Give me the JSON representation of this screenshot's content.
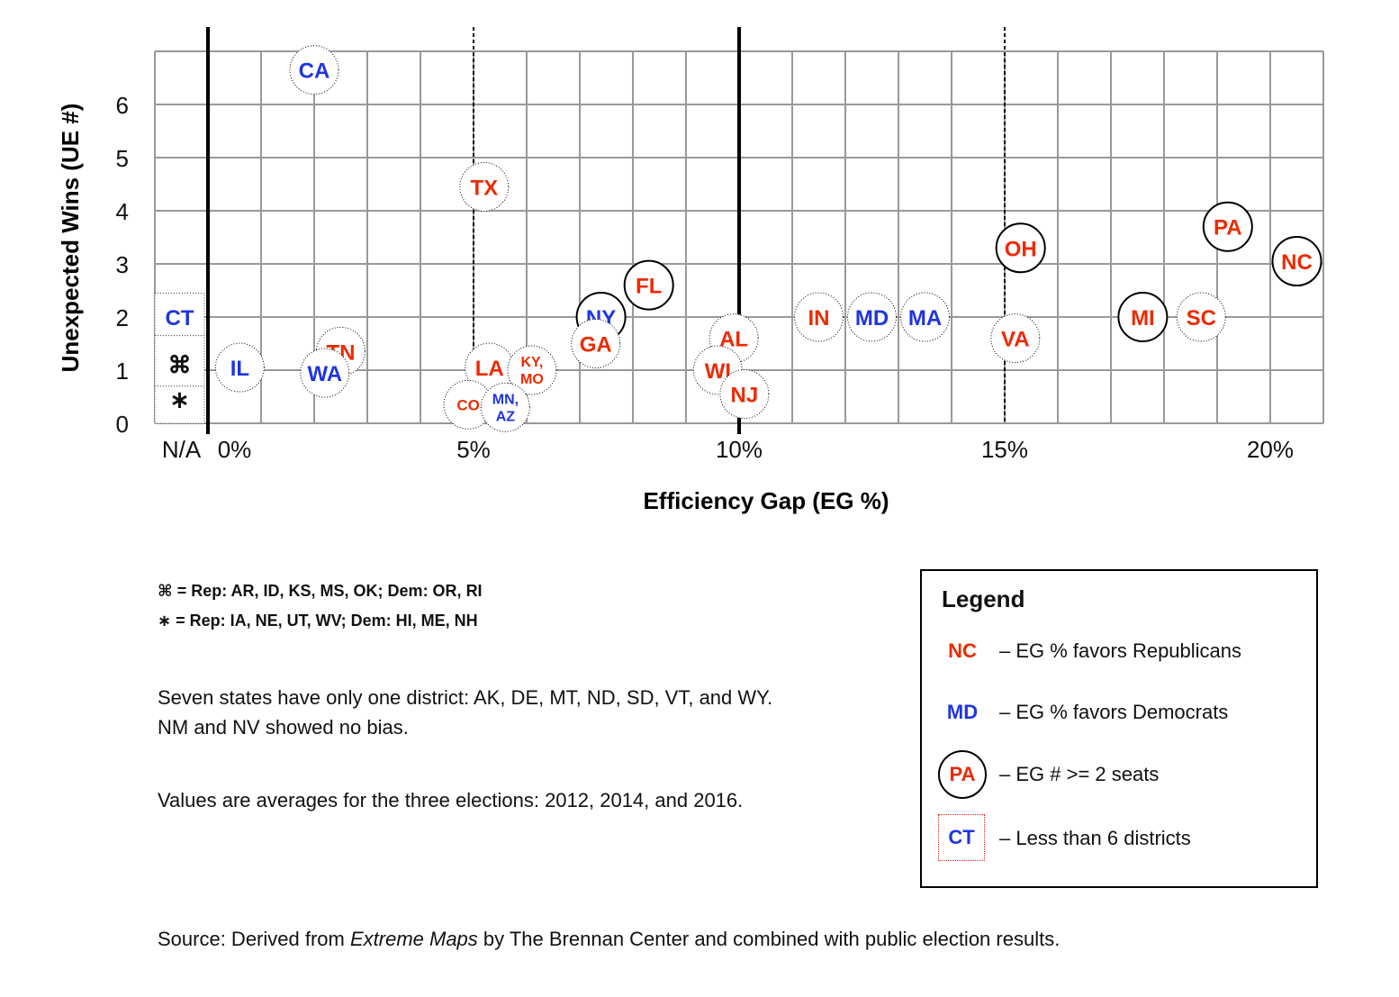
{
  "colors": {
    "rep": "#ee2a00",
    "dem": "#1f35e0",
    "grid": "#999999",
    "axis": "#000000"
  },
  "chart_data": {
    "type": "scatter",
    "xlabel": "Efficiency Gap (EG %)",
    "ylabel": "Unexpected Wins (UE #)",
    "xlim": [
      -1,
      21
    ],
    "ylim": [
      0,
      7
    ],
    "x_tick_labels": [
      {
        "x": -0.5,
        "label": "N/A"
      },
      {
        "x": 0.5,
        "label": "0%"
      },
      {
        "x": 5,
        "label": "5%"
      },
      {
        "x": 10,
        "label": "10%"
      },
      {
        "x": 15,
        "label": "15%"
      },
      {
        "x": 20,
        "label": "20%"
      }
    ],
    "y_ticks": [
      0,
      1,
      2,
      3,
      4,
      5,
      6
    ],
    "solid_reference_lines_x": [
      0,
      10
    ],
    "dotted_reference_lines_x": [
      5,
      15
    ],
    "na_column": [
      {
        "label": "CT",
        "y": 2.0,
        "party": "dem"
      },
      {
        "label": "⌘",
        "y": 1.1,
        "party": "none"
      },
      {
        "label": "∗",
        "y": 0.45,
        "party": "none"
      }
    ],
    "points": [
      {
        "label": "CA",
        "x": 2.0,
        "y": 6.65,
        "party": "dem",
        "seats2": false
      },
      {
        "label": "TX",
        "x": 5.2,
        "y": 4.45,
        "party": "rep",
        "seats2": false
      },
      {
        "label": "IL",
        "x": 0.6,
        "y": 1.05,
        "party": "dem",
        "seats2": false
      },
      {
        "label": "TN",
        "x": 2.5,
        "y": 1.35,
        "party": "rep",
        "seats2": false
      },
      {
        "label": "WA",
        "x": 2.2,
        "y": 0.95,
        "party": "dem",
        "seats2": false
      },
      {
        "label": "LA",
        "x": 5.3,
        "y": 1.05,
        "party": "rep",
        "seats2": false
      },
      {
        "label": "KY,|MO",
        "x": 6.1,
        "y": 1.0,
        "party": "rep",
        "seats2": false,
        "small": true
      },
      {
        "label": "CO",
        "x": 4.9,
        "y": 0.35,
        "party": "rep",
        "seats2": false,
        "small": true
      },
      {
        "label": "MN,|AZ",
        "x": 5.6,
        "y": 0.3,
        "party": "dem",
        "seats2": false,
        "small": true
      },
      {
        "label": "NY",
        "x": 7.4,
        "y": 2.0,
        "party": "dem",
        "seats2": true
      },
      {
        "label": "GA",
        "x": 7.3,
        "y": 1.5,
        "party": "rep",
        "seats2": false
      },
      {
        "label": "FL",
        "x": 8.3,
        "y": 2.6,
        "party": "rep",
        "seats2": true
      },
      {
        "label": "AL",
        "x": 9.9,
        "y": 1.6,
        "party": "rep",
        "seats2": false
      },
      {
        "label": "WI",
        "x": 9.6,
        "y": 1.0,
        "party": "rep",
        "seats2": false
      },
      {
        "label": "NJ",
        "x": 10.1,
        "y": 0.55,
        "party": "rep",
        "seats2": false
      },
      {
        "label": "IN",
        "x": 11.5,
        "y": 2.0,
        "party": "rep",
        "seats2": false
      },
      {
        "label": "MD",
        "x": 12.5,
        "y": 2.0,
        "party": "dem",
        "seats2": false
      },
      {
        "label": "MA",
        "x": 13.5,
        "y": 2.0,
        "party": "dem",
        "seats2": false
      },
      {
        "label": "OH",
        "x": 15.3,
        "y": 3.3,
        "party": "rep",
        "seats2": true
      },
      {
        "label": "VA",
        "x": 15.2,
        "y": 1.6,
        "party": "rep",
        "seats2": false
      },
      {
        "label": "MI",
        "x": 17.6,
        "y": 2.0,
        "party": "rep",
        "seats2": true
      },
      {
        "label": "SC",
        "x": 18.7,
        "y": 2.0,
        "party": "rep",
        "seats2": false
      },
      {
        "label": "PA",
        "x": 19.2,
        "y": 3.7,
        "party": "rep",
        "seats2": true
      },
      {
        "label": "NC",
        "x": 20.5,
        "y": 3.05,
        "party": "rep",
        "seats2": true
      }
    ]
  },
  "footnotes": {
    "line1": "⌘ = Rep: AR, ID, KS, MS, OK; Dem: OR, RI",
    "line2": "∗ = Rep: IA, NE, UT, WV; Dem: HI, ME, NH"
  },
  "notes": {
    "line1": "Seven states have only one district: AK, DE, MT, ND, SD, VT, and WY.",
    "line2": "NM and NV showed no bias.",
    "line3": "Values are averages for the three elections: 2012, 2014, and 2016."
  },
  "legend": {
    "title": "Legend",
    "items": [
      {
        "symbol": "NC",
        "desc": "– EG % favors Republicans"
      },
      {
        "symbol": "MD",
        "desc": "– EG % favors Democrats"
      },
      {
        "symbol": "PA",
        "desc": "– EG # >= 2 seats"
      },
      {
        "symbol": "CT",
        "desc": "– Less than 6 districts"
      }
    ]
  },
  "source": {
    "prefix": "Source: Derived from ",
    "title": "Extreme Maps",
    "suffix": " by The Brennan Center and combined with public election results."
  }
}
